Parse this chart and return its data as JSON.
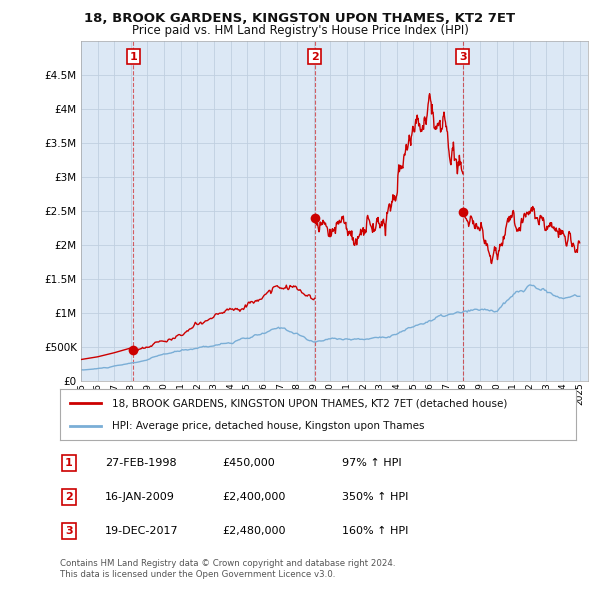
{
  "title": "18, BROOK GARDENS, KINGSTON UPON THAMES, KT2 7ET",
  "subtitle": "Price paid vs. HM Land Registry's House Price Index (HPI)",
  "legend_label_red": "18, BROOK GARDENS, KINGSTON UPON THAMES, KT2 7ET (detached house)",
  "legend_label_blue": "HPI: Average price, detached house, Kingston upon Thames",
  "footer1": "Contains HM Land Registry data © Crown copyright and database right 2024.",
  "footer2": "This data is licensed under the Open Government Licence v3.0.",
  "sales": [
    {
      "num": 1,
      "date": "27-FEB-1998",
      "price": 450000,
      "hpi_pct": "97% ↑ HPI",
      "x": 1998.15
    },
    {
      "num": 2,
      "date": "16-JAN-2009",
      "price": 2400000,
      "hpi_pct": "350% ↑ HPI",
      "x": 2009.05
    },
    {
      "num": 3,
      "date": "19-DEC-2017",
      "price": 2480000,
      "hpi_pct": "160% ↑ HPI",
      "x": 2017.97
    }
  ],
  "hpi_line_color": "#7aaed6",
  "price_line_color": "#cc0000",
  "sale_dot_color": "#cc0000",
  "annotation_box_color": "#cc0000",
  "grid_color": "#c0cfe0",
  "bg_color": "#ffffff",
  "plot_bg_color": "#dce8f5",
  "ylim": [
    0,
    5000000
  ],
  "xlim": [
    1995.0,
    2025.5
  ]
}
